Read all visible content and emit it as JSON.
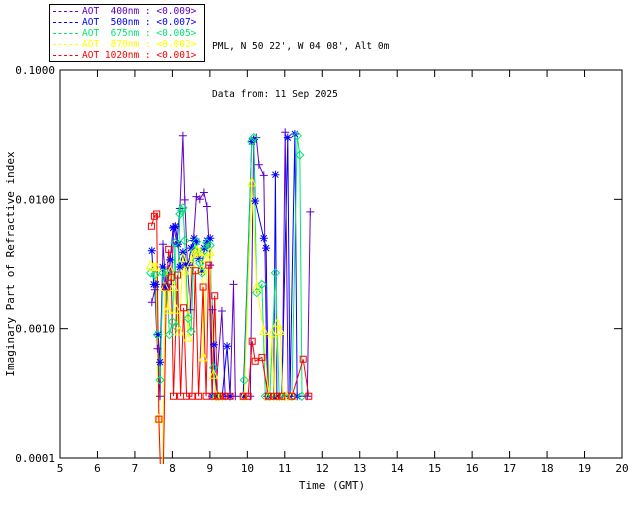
{
  "header": {
    "location": "PML, N 50 22', W 04 08', Alt 0m",
    "date": "Data from: 11 Sep 2025"
  },
  "legend": {
    "items": [
      {
        "wavelength": "400nm",
        "label": "AOT  400nm : <0.009>",
        "color": "#6000c8"
      },
      {
        "wavelength": "500nm",
        "label": "AOT  500nm : <0.007>",
        "color": "#0000ff"
      },
      {
        "wavelength": "675nm",
        "label": "AOT  675nm : <0.005>",
        "color": "#00e673"
      },
      {
        "wavelength": "870nm",
        "label": "AOT  870nm : <0.002>",
        "color": "#ffff00"
      },
      {
        "wavelength": "1020nm",
        "label": "AOT 1020nm : <0.001>",
        "color": "#ff0000"
      }
    ]
  },
  "chart_data": {
    "type": "line",
    "title": "",
    "xlabel": "Time (GMT)",
    "ylabel": "Imaginary Part of Refractive index",
    "xlim": [
      5,
      20
    ],
    "ylim": [
      0.0001,
      0.1
    ],
    "yscale": "log",
    "grid": false,
    "legend_position": "top-left",
    "x_ticks": [
      "5",
      "6",
      "7",
      "8",
      "9",
      "10",
      "11",
      "12",
      "13",
      "14",
      "15",
      "16",
      "17",
      "18",
      "19",
      "20"
    ],
    "y_ticks": [
      {
        "value": 0.1,
        "label": "0.1000"
      },
      {
        "value": 0.01,
        "label": "0.0100"
      },
      {
        "value": 0.001,
        "label": "0.0010"
      },
      {
        "value": 0.0001,
        "label": "0.0001"
      }
    ],
    "series": [
      {
        "name": "AOT 400nm",
        "color": "#6000c8",
        "marker": "plus",
        "points": [
          [
            7.45,
            0.0016
          ],
          [
            7.53,
            0.002
          ],
          [
            7.6,
            0.0007
          ],
          [
            7.67,
            0.0003
          ],
          [
            7.75,
            0.0045
          ],
          [
            7.83,
            0.0021
          ],
          [
            7.9,
            0.0029
          ],
          [
            7.97,
            0.0022
          ],
          [
            8.04,
            0.0061
          ],
          [
            8.12,
            0.0046
          ],
          [
            8.2,
            0.0085
          ],
          [
            8.28,
            0.031
          ],
          [
            8.33,
            0.0099
          ],
          [
            8.4,
            0.0031
          ],
          [
            8.48,
            0.0014
          ],
          [
            8.56,
            0.0048
          ],
          [
            8.64,
            0.0105
          ],
          [
            8.73,
            0.01
          ],
          [
            8.84,
            0.0113
          ],
          [
            8.92,
            0.0088
          ],
          [
            9.01,
            0.0031
          ],
          [
            9.07,
            0.0014
          ],
          [
            9.15,
            0.0003
          ],
          [
            9.32,
            0.00137
          ],
          [
            9.41,
            0.0003
          ],
          [
            9.54,
            0.0003
          ],
          [
            9.63,
            0.0022
          ],
          [
            9.68,
            0.0003
          ],
          null,
          [
            10.08,
            0.0003
          ],
          [
            10.17,
            0.029
          ],
          [
            10.24,
            0.03
          ],
          [
            10.31,
            0.0185
          ],
          [
            10.44,
            0.0153
          ],
          [
            10.53,
            0.0003
          ],
          [
            10.7,
            0.0003
          ],
          [
            10.79,
            0.0003
          ],
          [
            10.93,
            0.0003
          ],
          [
            11.01,
            0.033
          ],
          [
            11.09,
            0.0003
          ],
          [
            11.6,
            0.0003
          ],
          [
            11.68,
            0.008
          ]
        ]
      },
      {
        "name": "AOT 500nm",
        "color": "#0000ff",
        "marker": "asterisk",
        "points": [
          [
            7.45,
            0.004
          ],
          [
            7.5,
            0.0022
          ],
          [
            7.56,
            0.0022
          ],
          [
            7.62,
            0.0009
          ],
          [
            7.67,
            0.00055
          ],
          [
            7.74,
            0.003
          ],
          [
            7.8,
            0.0021
          ],
          [
            7.87,
            0.0021
          ],
          [
            7.94,
            0.0034
          ],
          [
            8.02,
            0.006
          ],
          [
            8.08,
            0.0062
          ],
          [
            8.15,
            0.0045
          ],
          [
            8.2,
            0.003
          ],
          [
            8.28,
            0.0039
          ],
          [
            8.35,
            0.0031
          ],
          [
            8.42,
            0.0031
          ],
          [
            8.5,
            0.0042
          ],
          [
            8.58,
            0.005
          ],
          [
            8.64,
            0.0047
          ],
          [
            8.7,
            0.0035
          ],
          [
            8.78,
            0.0028
          ],
          [
            8.85,
            0.0042
          ],
          [
            8.93,
            0.0048
          ],
          [
            9.01,
            0.005
          ],
          [
            9.06,
            0.0003
          ],
          [
            9.11,
            0.00075
          ],
          [
            9.17,
            0.0003
          ],
          [
            9.23,
            0.0003
          ],
          [
            9.33,
            0.0003
          ],
          [
            9.46,
            0.00073
          ],
          [
            9.54,
            0.0003
          ],
          null,
          [
            9.89,
            0.0003
          ],
          [
            10.12,
            0.028
          ],
          [
            10.17,
            0.029
          ],
          [
            10.21,
            0.0097
          ],
          [
            10.44,
            0.005
          ],
          [
            10.5,
            0.0042
          ],
          [
            10.56,
            0.0003
          ],
          [
            10.7,
            0.0003
          ],
          [
            10.75,
            0.0155
          ],
          [
            10.79,
            0.0003
          ],
          [
            10.92,
            0.0003
          ],
          [
            11.08,
            0.03
          ],
          [
            11.14,
            0.0003
          ],
          [
            11.27,
            0.032
          ],
          [
            11.33,
            0.0003
          ]
        ]
      },
      {
        "name": "AOT 675nm",
        "color": "#00e673",
        "marker": "diamond",
        "points": [
          [
            7.42,
            0.0027
          ],
          [
            7.53,
            0.0026
          ],
          [
            7.6,
            0.0009
          ],
          [
            7.67,
            0.0004
          ],
          [
            7.75,
            0.0027
          ],
          [
            7.84,
            0.0027
          ],
          [
            7.92,
            0.0009
          ],
          [
            8.0,
            0.00113
          ],
          [
            8.07,
            0.0046
          ],
          [
            8.11,
            0.00103
          ],
          [
            8.2,
            0.0077
          ],
          [
            8.25,
            0.0082
          ],
          [
            8.28,
            0.0086
          ],
          [
            8.33,
            0.0048
          ],
          [
            8.42,
            0.0012
          ],
          [
            8.5,
            0.00095
          ],
          [
            8.58,
            0.004
          ],
          [
            8.64,
            0.0047
          ],
          [
            8.73,
            0.0032
          ],
          [
            8.79,
            0.0027
          ],
          [
            8.85,
            0.004
          ],
          [
            8.92,
            0.0046
          ],
          [
            9.01,
            0.0044
          ],
          [
            9.1,
            0.0005
          ],
          [
            9.17,
            0.0003
          ],
          [
            9.23,
            0.0003
          ],
          null,
          [
            9.92,
            0.0004
          ],
          [
            10.12,
            0.028
          ],
          [
            10.17,
            0.03
          ],
          [
            10.25,
            0.0019
          ],
          [
            10.39,
            0.0022
          ],
          [
            10.48,
            0.0003
          ],
          [
            10.6,
            0.0003
          ],
          [
            10.75,
            0.0027
          ],
          [
            10.85,
            0.0003
          ],
          [
            11.0,
            0.0003
          ],
          [
            11.19,
            0.0003
          ],
          [
            11.33,
            0.031
          ],
          [
            11.4,
            0.022
          ],
          [
            11.46,
            0.0003
          ]
        ]
      },
      {
        "name": "AOT 870nm",
        "color": "#ffff00",
        "marker": "triangle",
        "points": [
          [
            7.42,
            0.0031
          ],
          [
            7.5,
            0.003
          ],
          [
            7.57,
            0.003
          ],
          [
            7.63,
            0.0002
          ],
          [
            7.68,
            8.5e-05
          ],
          [
            7.74,
            8.5e-05
          ],
          [
            7.8,
            0.0021
          ],
          [
            7.88,
            0.0014
          ],
          [
            7.95,
            0.0028
          ],
          [
            8.03,
            0.0021
          ],
          [
            8.11,
            0.0014
          ],
          [
            8.19,
            0.00095
          ],
          [
            8.28,
            0.0035
          ],
          [
            8.33,
            0.0028
          ],
          [
            8.42,
            0.00085
          ],
          [
            8.5,
            0.0032
          ],
          [
            8.58,
            0.0038
          ],
          [
            8.66,
            0.004
          ],
          [
            8.73,
            0.0039
          ],
          [
            8.79,
            0.00285
          ],
          [
            8.83,
            0.0006
          ],
          [
            8.92,
            0.0035
          ],
          [
            9.01,
            0.0039
          ],
          [
            9.1,
            0.00044
          ],
          [
            9.17,
            0.0003
          ],
          [
            9.28,
            0.0003
          ],
          null,
          [
            9.92,
            0.0003
          ],
          [
            10.12,
            0.0135
          ],
          [
            10.25,
            0.0021
          ],
          [
            10.44,
            0.00096
          ],
          [
            10.56,
            0.0003
          ],
          [
            10.66,
            0.00092
          ],
          [
            10.72,
            0.0003
          ],
          [
            10.8,
            0.0011
          ],
          [
            10.88,
            0.00096
          ],
          [
            10.95,
            0.0003
          ],
          [
            11.05,
            0.0003
          ],
          [
            11.19,
            0.0003
          ]
        ]
      },
      {
        "name": "AOT 1020nm",
        "color": "#ff0000",
        "marker": "square",
        "points": [
          [
            7.44,
            0.0062
          ],
          [
            7.52,
            0.0074
          ],
          [
            7.58,
            0.0077
          ],
          [
            7.64,
            0.0002
          ],
          [
            7.68,
            8.5e-05
          ],
          [
            7.76,
            8.5e-05
          ],
          [
            7.84,
            0.0021
          ],
          [
            7.9,
            0.0041
          ],
          [
            7.97,
            0.0025
          ],
          [
            8.03,
            0.0003
          ],
          [
            8.14,
            0.0026
          ],
          [
            8.22,
            0.0003
          ],
          [
            8.3,
            0.00145
          ],
          [
            8.38,
            0.0003
          ],
          [
            8.52,
            0.0003
          ],
          [
            8.61,
            0.0028
          ],
          [
            8.7,
            0.0003
          ],
          [
            8.82,
            0.0021
          ],
          [
            8.9,
            0.0003
          ],
          [
            8.97,
            0.0031
          ],
          [
            9.06,
            0.0003
          ],
          [
            9.13,
            0.0018
          ],
          [
            9.2,
            0.0003
          ],
          [
            9.28,
            0.0003
          ],
          [
            9.41,
            0.0003
          ],
          [
            9.54,
            0.0003
          ],
          null,
          [
            9.89,
            0.0003
          ],
          [
            10.02,
            0.0003
          ],
          [
            10.13,
            0.0008
          ],
          [
            10.21,
            0.00056
          ],
          [
            10.39,
            0.0006
          ],
          [
            10.56,
            0.0003
          ],
          [
            10.7,
            0.0003
          ],
          [
            10.79,
            0.0003
          ],
          [
            10.92,
            0.0003
          ],
          [
            11.19,
            0.0003
          ],
          [
            11.49,
            0.00058
          ],
          [
            11.64,
            0.0003
          ]
        ]
      }
    ]
  }
}
